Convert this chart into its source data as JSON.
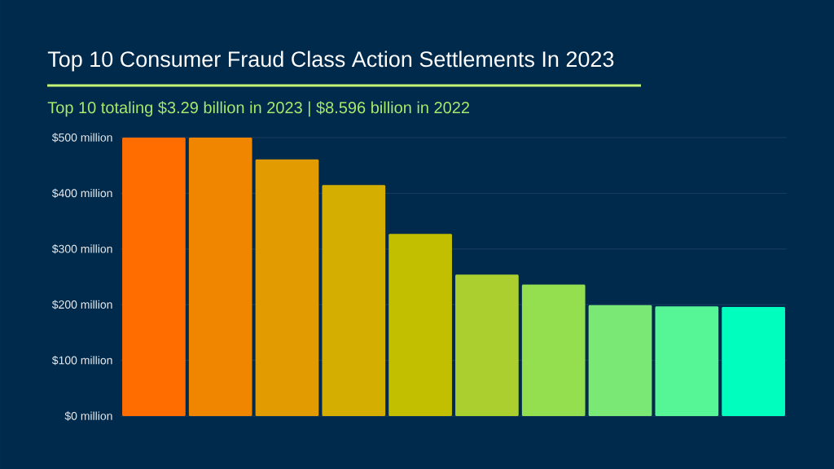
{
  "chart_data": {
    "type": "bar",
    "title": "Top 10 Consumer Fraud Class Action Settlements In 2023",
    "subtitle": "Top 10 totaling $3.29 billion in 2023 | $8.596 billion in 2022",
    "categories": [
      null,
      null,
      null,
      null,
      null,
      null,
      null,
      null,
      null,
      null
    ],
    "values": [
      500,
      500,
      461,
      415,
      327,
      254,
      236,
      199,
      197,
      196
    ],
    "colors": [
      "#ff6d00",
      "#f08500",
      "#e29b00",
      "#d4ae00",
      "#c1bf00",
      "#abcf2f",
      "#93df50",
      "#7ae874",
      "#56f697",
      "#00ffbe"
    ],
    "ylim": [
      0,
      500
    ],
    "yticks": [
      {
        "value": 0,
        "label": "$0 million"
      },
      {
        "value": 100,
        "label": "$100 million"
      },
      {
        "value": 200,
        "label": "$200 million"
      },
      {
        "value": 300,
        "label": "$300 million"
      },
      {
        "value": 400,
        "label": "$400 million"
      },
      {
        "value": 500,
        "label": "$500 million"
      }
    ],
    "grid": "y"
  }
}
